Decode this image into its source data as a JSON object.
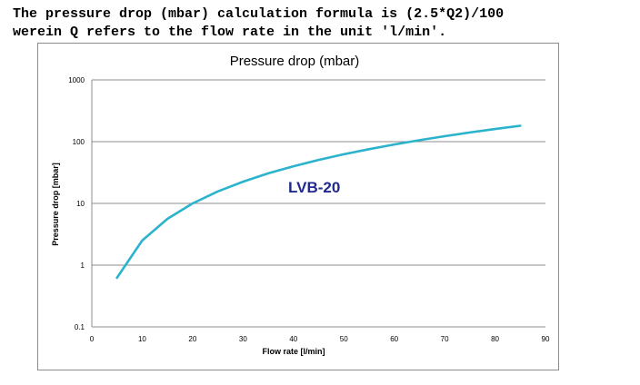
{
  "header": {
    "line1": "The pressure drop (mbar) calculation formula is (2.5*Q2)/100",
    "line2": "werein Q refers to the flow rate in the unit 'l/min'."
  },
  "chart_data": {
    "type": "line",
    "title": "Pressure drop (mbar)",
    "xlabel": "Flow rate [l/min]",
    "ylabel": "Pressure drop [mbar]",
    "annotation": "LVB-20",
    "xlim": [
      0,
      90
    ],
    "ylim": [
      0.1,
      1000
    ],
    "yscale": "log",
    "x_ticks": [
      "0",
      "10",
      "20",
      "30",
      "40",
      "50",
      "60",
      "70",
      "80",
      "90"
    ],
    "y_ticks": [
      "0.1",
      "1",
      "10",
      "100",
      "1000"
    ],
    "grid": "horizontal",
    "legend": "none",
    "series": [
      {
        "color": "#2bb3cc",
        "x": [
          5,
          10,
          15,
          20,
          25,
          30,
          35,
          40,
          45,
          50,
          55,
          60,
          65,
          70,
          75,
          80,
          85
        ],
        "y": [
          0.625,
          2.5,
          5.625,
          10,
          15.625,
          22.5,
          30.625,
          40,
          50.625,
          62.5,
          75.625,
          90,
          105.625,
          122.5,
          140.625,
          160,
          180.625
        ]
      }
    ]
  }
}
